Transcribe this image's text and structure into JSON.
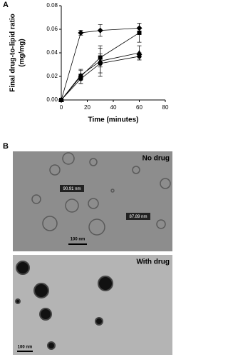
{
  "panels": [
    "A",
    "B"
  ],
  "chart_data": {
    "type": "line",
    "x_label": "Time (minutes)",
    "y_label": [
      "Final drug-to-lipid ratio",
      "(mg/mg)"
    ],
    "x": [
      0,
      15,
      30,
      60
    ],
    "series": [
      {
        "marker": "diamond",
        "color": "#000000",
        "values": [
          0,
          0.057,
          0.059,
          0.061
        ],
        "errors": [
          0,
          0.002,
          0.005,
          0.004
        ]
      },
      {
        "marker": "square",
        "color": "#000000",
        "values": [
          0,
          0.02,
          0.036,
          0.057
        ],
        "errors": [
          0,
          0.006,
          0.008,
          0.008
        ]
      },
      {
        "marker": "triangle",
        "color": "#000000",
        "values": [
          0,
          0.021,
          0.033,
          0.04
        ],
        "errors": [
          0,
          0.004,
          0.013,
          0.006
        ]
      },
      {
        "marker": "circle",
        "color": "#000000",
        "values": [
          0,
          0.018,
          0.031,
          0.037
        ],
        "errors": [
          0,
          0.004,
          0.008,
          0.003
        ]
      }
    ],
    "xlim": [
      0,
      80
    ],
    "xticks": [
      0,
      20,
      40,
      60,
      80
    ],
    "ylim": [
      0,
      0.08
    ],
    "yticks": [
      {
        "value": 0,
        "label": "0.00"
      },
      {
        "value": 0.02,
        "label": "0.02"
      },
      {
        "value": 0.04,
        "label": "0.04"
      },
      {
        "value": 0.06,
        "label": "0.06"
      },
      {
        "value": 0.08,
        "label": "0.08"
      }
    ]
  },
  "images": [
    {
      "label": "No drug",
      "annotations": [
        "90.91 nm",
        "87.89 nm"
      ],
      "scale_bar": "100 nm"
    },
    {
      "label": "With drug",
      "scale_bar": "100 nm"
    }
  ]
}
